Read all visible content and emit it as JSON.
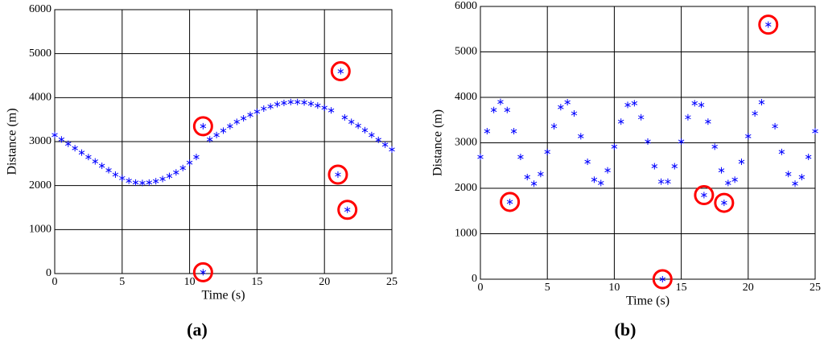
{
  "chart_data": [
    {
      "type": "scatter",
      "caption": "(a)",
      "x_label": "Time (s)",
      "y_label": "Distance (m)",
      "xlim": [
        0,
        25
      ],
      "xticks": [
        0,
        5,
        10,
        15,
        20,
        25
      ],
      "ylim": [
        0,
        6000
      ],
      "yticks": [
        0,
        1000,
        2000,
        3000,
        4000,
        5000,
        6000
      ],
      "grid": true,
      "series": [
        {
          "color": "#0000ff",
          "x": [
            0,
            0.5,
            1,
            1.5,
            2,
            2.5,
            3,
            3.5,
            4,
            4.5,
            5,
            5.5,
            6,
            6.5,
            7,
            7.5,
            8,
            8.5,
            9,
            9.5,
            10,
            10.5,
            11.5,
            12,
            12.5,
            13,
            13.5,
            14,
            14.5,
            15,
            15.5,
            16,
            16.5,
            17,
            17.5,
            18,
            18.5,
            19,
            19.5,
            20,
            20.5,
            21.5,
            22,
            22.5,
            23,
            23.5,
            24,
            24.5,
            25
          ],
          "values": [
            3150,
            3050,
            2950,
            2850,
            2750,
            2650,
            2550,
            2450,
            2350,
            2250,
            2170,
            2110,
            2070,
            2060,
            2070,
            2100,
            2150,
            2220,
            2300,
            2400,
            2520,
            2650,
            3050,
            3150,
            3250,
            3350,
            3450,
            3530,
            3610,
            3680,
            3750,
            3800,
            3850,
            3880,
            3900,
            3900,
            3890,
            3860,
            3820,
            3770,
            3710,
            3550,
            3450,
            3360,
            3260,
            3150,
            3040,
            2930,
            2820
          ]
        },
        {
          "color": "#0000ff",
          "ring_color": "#ff0000",
          "x": [
            11,
            21.2,
            21,
            21.7,
            11
          ],
          "values": [
            3350,
            4600,
            2250,
            1450,
            30
          ]
        }
      ]
    },
    {
      "type": "scatter",
      "caption": "(b)",
      "x_label": "Time (s)",
      "y_label": "Distance (m)",
      "xlim": [
        0,
        25
      ],
      "xticks": [
        0,
        5,
        10,
        15,
        20,
        25
      ],
      "ylim": [
        0,
        6000
      ],
      "yticks": [
        0,
        1000,
        2000,
        3000,
        4000,
        5000,
        6000
      ],
      "grid": true,
      "series": [
        {
          "color": "#0000ff",
          "x": [
            0,
            0.5,
            1,
            1.5,
            2,
            2.5,
            3,
            3.5,
            4,
            4.5,
            5,
            5.5,
            6,
            6.5,
            7,
            7.5,
            8,
            8.5,
            9,
            9.5,
            10,
            10.5,
            11,
            11.5,
            12,
            12.5,
            13,
            13.5,
            14,
            14.5,
            15,
            15.5,
            16,
            16.5,
            17,
            17.5,
            18,
            18.5,
            19,
            19.5,
            20,
            20.5,
            21,
            22,
            22.5,
            23,
            23.5,
            24,
            24.5,
            25
          ],
          "values": [
            2690,
            3256,
            3722,
            3900,
            3722,
            3256,
            2690,
            2246,
            2102,
            2314,
            2799,
            3365,
            3784,
            3893,
            3646,
            3144,
            2583,
            2189,
            2116,
            2395,
            2914,
            3466,
            3834,
            3870,
            3562,
            3028,
            2485,
            2146,
            2146,
            2485,
            3028,
            3562,
            3870,
            3834,
            3466,
            2914,
            2395,
            2116,
            2189,
            2583,
            3144,
            3646,
            3893,
            3365,
            2799,
            2314,
            2102,
            2246,
            2690,
            3256
          ]
        },
        {
          "color": "#0000ff",
          "ring_color": "#ff0000",
          "x": [
            2.2,
            13.6,
            16.7,
            18.2,
            21.5
          ],
          "values": [
            1700,
            0,
            1850,
            1680,
            5600
          ]
        }
      ]
    }
  ]
}
